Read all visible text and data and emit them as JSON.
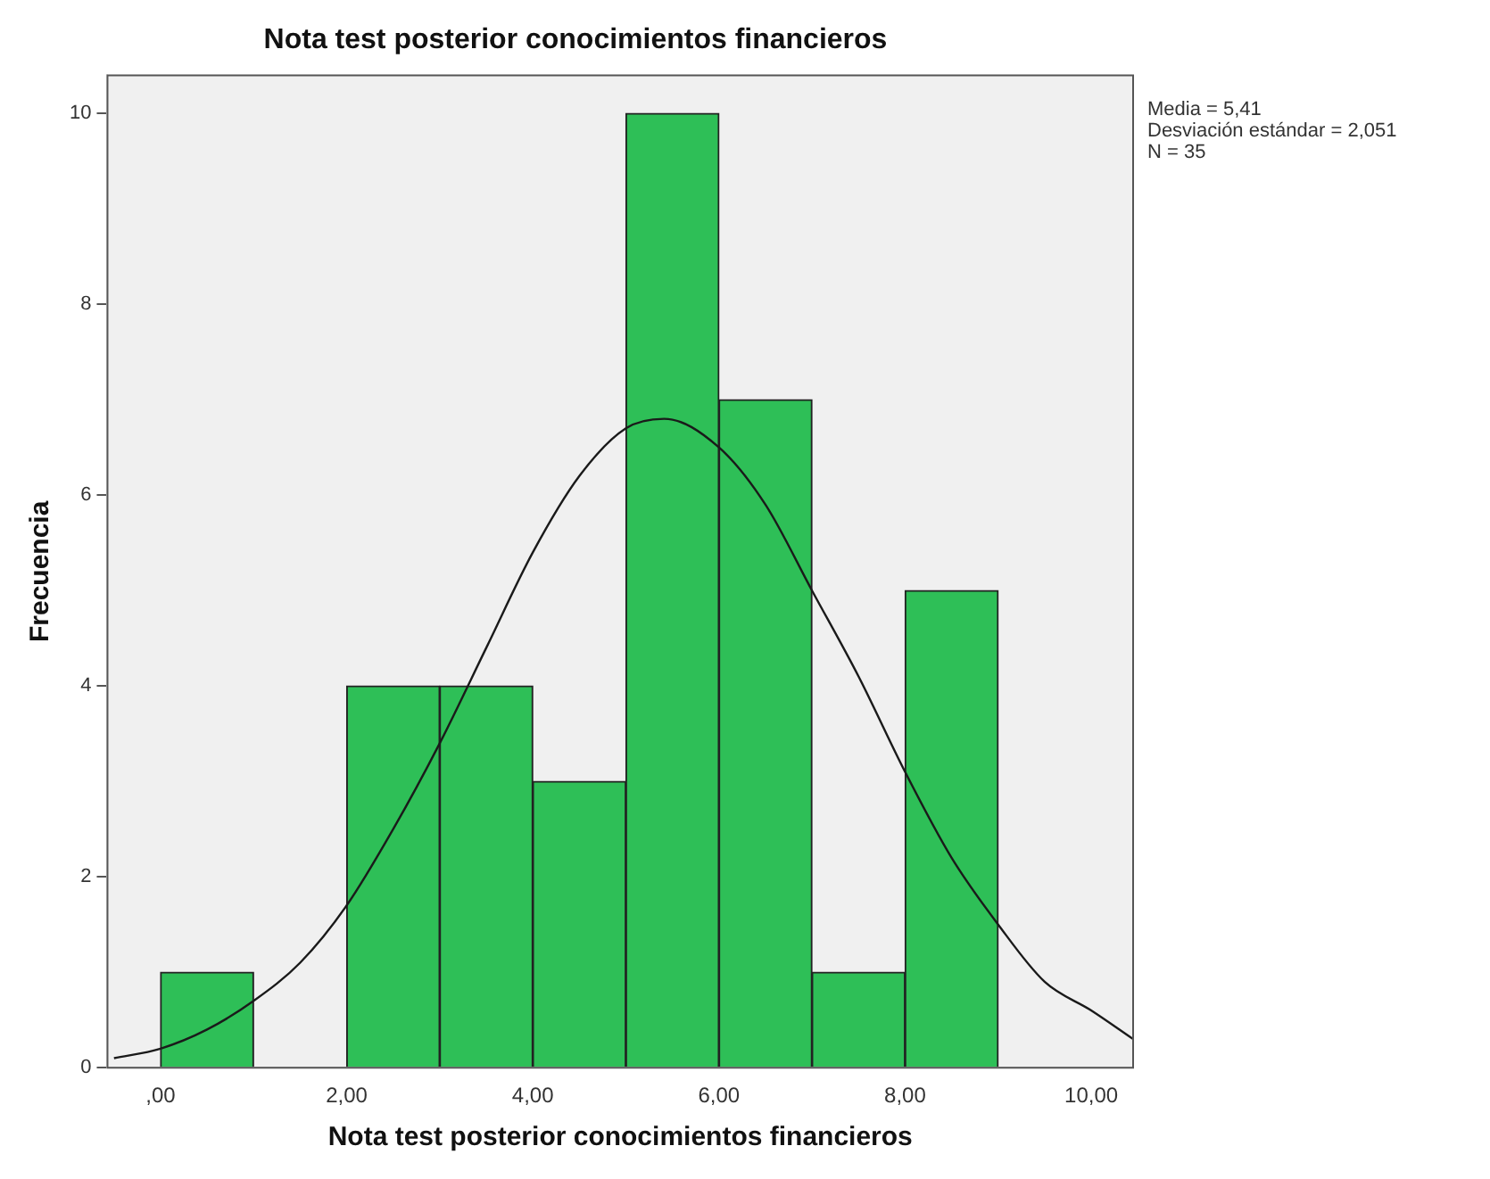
{
  "chart_data": {
    "type": "histogram",
    "title": "Nota test posterior conocimientos financieros",
    "xlabel": "Nota test posterior conocimientos financieros",
    "ylabel": "Frecuencia",
    "bins": [
      0,
      1,
      2,
      3,
      4,
      5,
      6,
      7,
      8,
      9
    ],
    "values": [
      1,
      0,
      4,
      4,
      3,
      10,
      7,
      1,
      5
    ],
    "color": "#2ebf57",
    "series": [
      {
        "type": "line",
        "color": "#1a1a1a",
        "x": [
          -0.5,
          0,
          0.5,
          1,
          1.5,
          2,
          2.5,
          3,
          3.5,
          4,
          4.5,
          5,
          5.41,
          6,
          6.5,
          7,
          7.5,
          8,
          8.5,
          9,
          9.5,
          10,
          10.45
        ],
        "values": [
          0.1,
          0.2,
          0.4,
          0.7,
          1.1,
          1.7,
          2.5,
          3.4,
          4.4,
          5.4,
          6.2,
          6.7,
          6.8,
          6.5,
          5.9,
          5.0,
          4.1,
          3.1,
          2.2,
          1.5,
          0.9,
          0.6,
          0.3
        ]
      }
    ],
    "xlim": [
      -0.57,
      10.45
    ],
    "ylim": [
      0,
      10.4
    ],
    "xticks": [
      {
        "value": 0,
        "label": ",00"
      },
      {
        "value": 2,
        "label": "2,00"
      },
      {
        "value": 4,
        "label": "4,00"
      },
      {
        "value": 6,
        "label": "6,00"
      },
      {
        "value": 8,
        "label": "8,00"
      },
      {
        "value": 10,
        "label": "10,00"
      }
    ],
    "yticks": [
      0,
      2,
      4,
      6,
      8,
      10
    ],
    "annotations": [
      "Media = 5,41",
      "Desviación estándar = 2,051",
      "N = 35"
    ],
    "grid": false,
    "legend": false,
    "marker": "none"
  }
}
